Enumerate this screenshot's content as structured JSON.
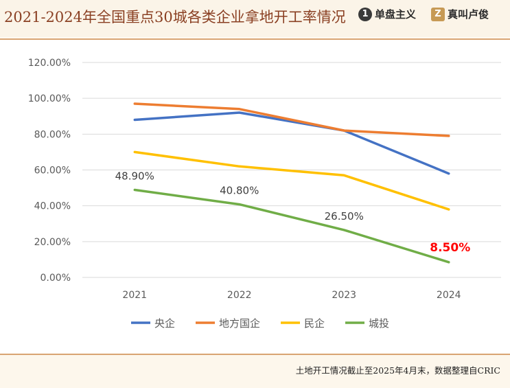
{
  "header": {
    "title": "2021-2024年全国重点30城各类企业拿地开工率情况",
    "brands": [
      {
        "logo": "1",
        "name": "单盘主义"
      },
      {
        "logo": "Z",
        "name": "真叫卢俊"
      }
    ]
  },
  "footer": {
    "source": "土地开工情况截止至2025年4月末，数据整理自CRIC"
  },
  "chart_data": {
    "type": "line",
    "title": "",
    "xlabel": "",
    "ylabel": "",
    "categories": [
      "2021",
      "2022",
      "2023",
      "2024"
    ],
    "ylim": [
      0,
      120
    ],
    "y_ticks": [
      0,
      20,
      40,
      60,
      80,
      100,
      120
    ],
    "y_tick_labels": [
      "0.00%",
      "20.00%",
      "40.00%",
      "60.00%",
      "80.00%",
      "100.00%",
      "120.00%"
    ],
    "grid": true,
    "legend_position": "bottom",
    "series": [
      {
        "name": "央企",
        "color": "#4472c4",
        "values": [
          88,
          92,
          82,
          58
        ]
      },
      {
        "name": "地方国企",
        "color": "#ed7d31",
        "values": [
          97,
          94,
          82,
          79
        ]
      },
      {
        "name": "民企",
        "color": "#ffc000",
        "values": [
          70,
          62,
          57,
          38
        ]
      },
      {
        "name": "城投",
        "color": "#70ad47",
        "values": [
          48.9,
          40.8,
          26.5,
          8.5
        ]
      }
    ],
    "data_labels": [
      {
        "series": "城投",
        "index": 0,
        "text": "48.90%",
        "color": "#404040",
        "bold": false
      },
      {
        "series": "城投",
        "index": 1,
        "text": "40.80%",
        "color": "#404040",
        "bold": false
      },
      {
        "series": "城投",
        "index": 2,
        "text": "26.50%",
        "color": "#404040",
        "bold": false
      },
      {
        "series": "城投",
        "index": 3,
        "text": "8.50%",
        "color": "#ff0000",
        "bold": true
      }
    ]
  }
}
